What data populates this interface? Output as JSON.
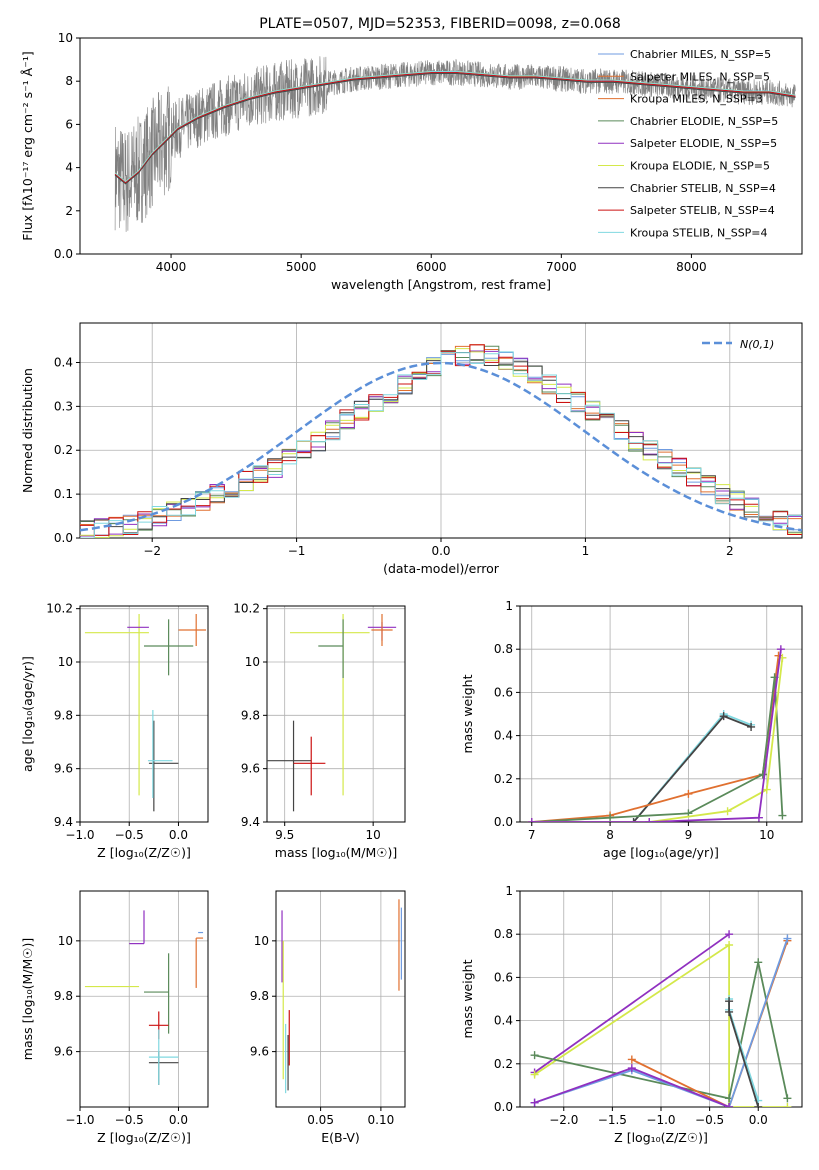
{
  "figure_title": "PLATE=0507, MJD=52353, FIBERID=0098, z=0.068",
  "colors": {
    "chab_miles": "#6f9be0",
    "salp_miles": "#e07030",
    "krou_miles": "#e07030",
    "chab_elodie": "#5a8a5a",
    "salp_elodie": "#9030c0",
    "krou_elodie": "#d4e84a",
    "chab_stelib": "#444444",
    "salp_stelib": "#cc1111",
    "krou_stelib": "#80d8e0",
    "data": "#808080",
    "gauss": "#5b8fd8"
  },
  "chart_data": [
    {
      "id": "spectrum",
      "type": "line",
      "title": "PLATE=0507, MJD=52353, FIBERID=0098, z=0.068",
      "xlabel": "wavelength [Angstrom, rest frame]",
      "ylabel": "Flux [fλ10⁻¹⁷ erg cm⁻² s⁻¹ Å⁻¹]",
      "xlim": [
        3300,
        8850
      ],
      "ylim": [
        0,
        10
      ],
      "xticks": [
        4000,
        5000,
        6000,
        7000,
        8000
      ],
      "yticks": [
        0,
        2,
        4,
        6,
        8,
        10
      ],
      "legend": "top-right",
      "model_x": [
        3570,
        3650,
        3750,
        3850,
        3950,
        4050,
        4200,
        4400,
        4600,
        4800,
        5000,
        5200,
        5400,
        5600,
        5800,
        6000,
        6200,
        6400,
        6600,
        6800,
        7000,
        7200,
        7400,
        7600,
        7800,
        8000,
        8200,
        8400,
        8600,
        8800
      ],
      "model_y": [
        3.7,
        3.3,
        3.8,
        4.6,
        5.2,
        5.8,
        6.3,
        6.8,
        7.2,
        7.5,
        7.7,
        7.9,
        8.1,
        8.2,
        8.3,
        8.4,
        8.4,
        8.3,
        8.2,
        8.2,
        8.1,
        8.0,
        8.0,
        7.9,
        7.8,
        7.7,
        7.6,
        7.5,
        7.5,
        7.3
      ],
      "series": [
        {
          "name": "Chabrier MILES, N_SSP=5",
          "color_key": "chab_miles"
        },
        {
          "name": "Salpeter MILES, N_SSP=5",
          "color_key": "salp_miles"
        },
        {
          "name": "Kroupa MILES, N_SSP=3",
          "color_key": "krou_miles"
        },
        {
          "name": "Chabrier ELODIE, N_SSP=5",
          "color_key": "chab_elodie"
        },
        {
          "name": "Salpeter ELODIE, N_SSP=5",
          "color_key": "salp_elodie"
        },
        {
          "name": "Kroupa ELODIE, N_SSP=5",
          "color_key": "krou_elodie"
        },
        {
          "name": "Chabrier STELIB, N_SSP=4",
          "color_key": "chab_stelib"
        },
        {
          "name": "Salpeter STELIB, N_SSP=4",
          "color_key": "salp_stelib"
        },
        {
          "name": "Kroupa STELIB, N_SSP=4",
          "color_key": "krou_stelib"
        }
      ]
    },
    {
      "id": "histogram",
      "type": "bar",
      "xlabel": "(data-model)/error",
      "ylabel": "Normed distribution",
      "xlim": [
        -2.5,
        2.5
      ],
      "ylim": [
        0,
        0.49
      ],
      "xticks": [
        -2,
        -1,
        0,
        1,
        2
      ],
      "yticks": [
        0.0,
        0.1,
        0.2,
        0.3,
        0.4
      ],
      "grid": true,
      "legend": "top-right",
      "gauss_label": "N(0,1)",
      "bin_width": 0.1,
      "bin_start": -2.5,
      "values": [
        0.02,
        0.022,
        0.025,
        0.03,
        0.04,
        0.05,
        0.06,
        0.07,
        0.085,
        0.1,
        0.115,
        0.13,
        0.145,
        0.16,
        0.18,
        0.2,
        0.22,
        0.245,
        0.27,
        0.29,
        0.31,
        0.33,
        0.35,
        0.37,
        0.39,
        0.405,
        0.415,
        0.42,
        0.415,
        0.405,
        0.39,
        0.37,
        0.35,
        0.33,
        0.31,
        0.29,
        0.27,
        0.245,
        0.22,
        0.2,
        0.18,
        0.16,
        0.14,
        0.12,
        0.1,
        0.085,
        0.07,
        0.055,
        0.04,
        0.03
      ]
    },
    {
      "id": "age_vs_Z",
      "type": "scatter",
      "xlabel": "Z [log₁₀(Z/Z☉)]",
      "ylabel": "age [log₁₀(age/yr)]",
      "xlim": [
        -1.0,
        0.3
      ],
      "ylim": [
        9.4,
        10.21
      ],
      "xticks": [
        -1.0,
        -0.5,
        0.0
      ],
      "xtick_labels": [
        "−1.0",
        "−0.5",
        "0.0"
      ],
      "yticks": [
        9.4,
        9.6,
        9.8,
        10.0,
        10.2
      ],
      "grid": true,
      "points": [
        {
          "color_key": "krou_elodie",
          "x": -0.4,
          "xerr": [
            0.55,
            0.1
          ],
          "y": 10.11,
          "yerr": [
            0.61,
            0.07
          ]
        },
        {
          "color_key": "salp_elodie",
          "x": -0.3,
          "xerr": [
            0.22,
            0.0
          ],
          "y": 10.13,
          "yerr": [
            0.0,
            0.0
          ]
        },
        {
          "color_key": "chab_elodie",
          "x": -0.1,
          "xerr": [
            0.25,
            0.25
          ],
          "y": 10.06,
          "yerr": [
            0.11,
            0.1
          ]
        },
        {
          "color_key": "salp_miles",
          "x": 0.18,
          "xerr": [
            0.18,
            0.1
          ],
          "y": 10.12,
          "yerr": [
            0.06,
            0.06
          ]
        },
        {
          "color_key": "chab_stelib",
          "x": -0.25,
          "xerr": [
            0.05,
            0.25
          ],
          "y": 9.62,
          "yerr": [
            0.18,
            0.16
          ]
        },
        {
          "color_key": "krou_stelib",
          "x": -0.26,
          "xerr": [
            0.05,
            0.2
          ],
          "y": 9.63,
          "yerr": [
            0.14,
            0.19
          ]
        }
      ]
    },
    {
      "id": "age_vs_mass",
      "type": "scatter",
      "xlabel": "mass [log₁₀(M/M☉)]",
      "ylabel": "",
      "xlim": [
        9.4,
        10.18
      ],
      "ylim": [
        9.4,
        10.21
      ],
      "xticks": [
        9.5,
        10.0
      ],
      "yticks": [
        9.4,
        9.6,
        9.8,
        10.0,
        10.2
      ],
      "grid": true,
      "points": [
        {
          "color_key": "krou_elodie",
          "x": 9.83,
          "xerr": [
            0.3,
            0.15
          ],
          "y": 10.11,
          "yerr": [
            0.61,
            0.07
          ]
        },
        {
          "color_key": "chab_elodie",
          "x": 9.83,
          "xerr": [
            0.14,
            0.0
          ],
          "y": 10.06,
          "yerr": [
            0.12,
            0.1
          ]
        },
        {
          "color_key": "salp_elodie",
          "x": 10.05,
          "xerr": [
            0.08,
            0.08
          ],
          "y": 10.13,
          "yerr": [
            0.05,
            0.02
          ]
        },
        {
          "color_key": "salp_miles",
          "x": 10.05,
          "xerr": [
            0.06,
            0.06
          ],
          "y": 10.12,
          "yerr": [
            0.06,
            0.06
          ]
        },
        {
          "color_key": "chab_stelib",
          "x": 9.55,
          "xerr": [
            0.15,
            0.1
          ],
          "y": 9.63,
          "yerr": [
            0.19,
            0.15
          ]
        },
        {
          "color_key": "salp_stelib",
          "x": 9.65,
          "xerr": [
            0.1,
            0.08
          ],
          "y": 9.62,
          "yerr": [
            0.12,
            0.1
          ]
        }
      ]
    },
    {
      "id": "massweight_vs_age",
      "type": "line",
      "xlabel": "age [log₁₀(age/yr)]",
      "ylabel": "mass weight",
      "xlim": [
        6.85,
        10.45
      ],
      "ylim": [
        0,
        1.0
      ],
      "xticks": [
        7,
        8,
        9,
        10
      ],
      "yticks": [
        0.0,
        0.2,
        0.4,
        0.6,
        0.8,
        1.0
      ],
      "grid": true,
      "series": [
        {
          "color_key": "krou_stelib",
          "x": [
            7.0,
            8.3,
            9.45,
            9.8
          ],
          "y": [
            0.0,
            0.0,
            0.5,
            0.45
          ]
        },
        {
          "color_key": "chab_stelib",
          "x": [
            7.0,
            8.3,
            9.45,
            9.8
          ],
          "y": [
            0.0,
            0.0,
            0.49,
            0.44
          ]
        },
        {
          "color_key": "salp_miles",
          "x": [
            7.0,
            8.0,
            9.0,
            9.95,
            10.15
          ],
          "y": [
            0.0,
            0.03,
            0.13,
            0.22,
            0.77
          ]
        },
        {
          "color_key": "chab_elodie",
          "x": [
            7.0,
            8.0,
            9.0,
            9.95,
            10.1,
            10.2
          ],
          "y": [
            0.0,
            0.02,
            0.04,
            0.22,
            0.67,
            0.03
          ]
        },
        {
          "color_key": "krou_elodie",
          "x": [
            7.0,
            8.5,
            9.5,
            10.0,
            10.2
          ],
          "y": [
            0.0,
            0.0,
            0.05,
            0.15,
            0.76
          ]
        },
        {
          "color_key": "salp_elodie",
          "x": [
            7.0,
            8.5,
            9.9,
            10.18
          ],
          "y": [
            0.0,
            0.0,
            0.02,
            0.8
          ]
        }
      ]
    },
    {
      "id": "mass_vs_Z",
      "type": "scatter",
      "xlabel": "Z [log₁₀(Z/Z☉)]",
      "ylabel": "mass [log₁₀(M/M☉)]",
      "xlim": [
        -1.0,
        0.3
      ],
      "ylim": [
        9.4,
        10.18
      ],
      "xticks": [
        -1.0,
        -0.5,
        0.0
      ],
      "xtick_labels": [
        "−1.0",
        "−0.5",
        "0.0"
      ],
      "yticks": [
        9.6,
        9.8,
        10.0
      ],
      "grid": true,
      "points": [
        {
          "color_key": "krou_elodie",
          "x": -0.4,
          "xerr": [
            0.55,
            0.0
          ],
          "y": 9.835,
          "yerr": [
            0.0,
            0.0
          ]
        },
        {
          "color_key": "salp_elodie",
          "x": -0.35,
          "xerr": [
            0.15,
            0.0
          ],
          "y": 9.99,
          "yerr": [
            0.0,
            0.12
          ]
        },
        {
          "color_key": "chab_elodie",
          "x": -0.1,
          "xerr": [
            0.25,
            0.0
          ],
          "y": 9.815,
          "yerr": [
            0.15,
            0.14
          ]
        },
        {
          "color_key": "salp_stelib",
          "x": -0.2,
          "xerr": [
            0.1,
            0.1
          ],
          "y": 9.695,
          "yerr": [
            0.05,
            0.05
          ]
        },
        {
          "color_key": "chab_stelib",
          "x": -0.2,
          "xerr": [
            0.1,
            0.2
          ],
          "y": 9.56,
          "yerr": [
            0.08,
            0.04
          ]
        },
        {
          "color_key": "krou_stelib",
          "x": -0.2,
          "xerr": [
            0.1,
            0.2
          ],
          "y": 9.58,
          "yerr": [
            0.1,
            0.1
          ]
        },
        {
          "color_key": "salp_miles",
          "x": 0.18,
          "xerr": [
            0.0,
            0.07
          ],
          "y": 10.01,
          "yerr": [
            0.18,
            0.0
          ]
        },
        {
          "color_key": "chab_miles",
          "x": 0.2,
          "xerr": [
            0.0,
            0.05
          ],
          "y": 10.03,
          "yerr": [
            0.0,
            0.0
          ]
        }
      ]
    },
    {
      "id": "mass_vs_ebv",
      "type": "scatter",
      "xlabel": "E(B-V)",
      "ylabel": "",
      "xlim": [
        0.013,
        0.12
      ],
      "ylim": [
        9.4,
        10.18
      ],
      "xticks": [
        0.05,
        0.1
      ],
      "yticks": [
        9.6,
        9.8,
        10.0
      ],
      "grid": true,
      "points": [
        {
          "color_key": "salp_elodie",
          "x": 0.018,
          "xerr": [
            0,
            0
          ],
          "y": 9.95,
          "yerr": [
            0.1,
            0.16
          ]
        },
        {
          "color_key": "krou_elodie",
          "x": 0.019,
          "xerr": [
            0,
            0
          ],
          "y": 9.8,
          "yerr": [
            0.3,
            0.2
          ]
        },
        {
          "color_key": "krou_stelib",
          "x": 0.021,
          "xerr": [
            0,
            0
          ],
          "y": 9.6,
          "yerr": [
            0.15,
            0.1
          ]
        },
        {
          "color_key": "salp_stelib",
          "x": 0.024,
          "xerr": [
            0,
            0
          ],
          "y": 9.65,
          "yerr": [
            0.1,
            0.1
          ]
        },
        {
          "color_key": "chab_stelib",
          "x": 0.023,
          "xerr": [
            0,
            0
          ],
          "y": 9.56,
          "yerr": [
            0.1,
            0.1
          ]
        },
        {
          "color_key": "salp_miles",
          "x": 0.115,
          "xerr": [
            0,
            0
          ],
          "y": 10.0,
          "yerr": [
            0.18,
            0.15
          ]
        },
        {
          "color_key": "chab_miles",
          "x": 0.117,
          "xerr": [
            0,
            0
          ],
          "y": 10.02,
          "yerr": [
            0.16,
            0.1
          ]
        }
      ]
    },
    {
      "id": "massweight_vs_Z",
      "type": "line",
      "xlabel": "Z [log₁₀(Z/Z☉)]",
      "ylabel": "mass weight",
      "xlim": [
        -2.45,
        0.45
      ],
      "ylim": [
        0,
        1.0
      ],
      "xticks": [
        -2.0,
        -1.5,
        -1.0,
        -0.5,
        0.0
      ],
      "xtick_labels": [
        "−2.0",
        "−1.5",
        "−1.0",
        "−0.5",
        "0.0"
      ],
      "yticks": [
        0.0,
        0.2,
        0.4,
        0.6,
        0.8,
        1.0
      ],
      "grid": true,
      "series": [
        {
          "color_key": "salp_elodie",
          "x": [
            -2.3,
            -0.3
          ],
          "y": [
            0.16,
            0.8
          ]
        },
        {
          "color_key": "krou_elodie",
          "x": [
            -2.3,
            -0.3,
            -0.3,
            0.3
          ],
          "y": [
            0.15,
            0.75,
            0.0,
            0.0
          ]
        },
        {
          "color_key": "chab_elodie",
          "x": [
            -2.3,
            -0.3,
            0.0,
            0.3
          ],
          "y": [
            0.24,
            0.04,
            0.67,
            0.04
          ]
        },
        {
          "color_key": "salp_miles",
          "x": [
            -1.3,
            -0.3,
            0.3
          ],
          "y": [
            0.22,
            0.0,
            0.77
          ]
        },
        {
          "color_key": "chab_miles",
          "x": [
            -2.3,
            -1.3,
            -0.3,
            0.3
          ],
          "y": [
            0.02,
            0.17,
            0.0,
            0.78
          ]
        },
        {
          "color_key": "salp_elodie",
          "x": [
            -2.3,
            -1.3,
            -0.3
          ],
          "y": [
            0.02,
            0.18,
            0.0
          ]
        },
        {
          "color_key": "krou_stelib",
          "x": [
            -0.3,
            -0.3,
            0.0
          ],
          "y": [
            0.5,
            0.45,
            0.03
          ]
        },
        {
          "color_key": "chab_stelib",
          "x": [
            -0.3,
            -0.3,
            0.0
          ],
          "y": [
            0.49,
            0.44,
            0.0
          ]
        }
      ]
    }
  ]
}
